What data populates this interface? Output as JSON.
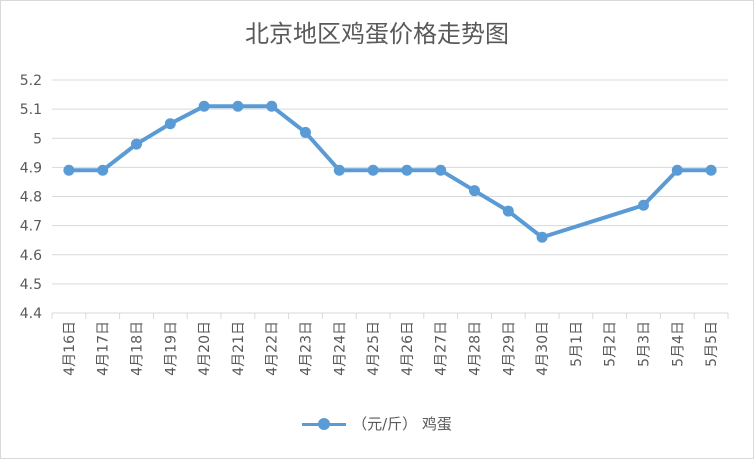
{
  "chart_data": {
    "type": "line",
    "title": "北京地区鸡蛋价格走势图",
    "categories": [
      "4月16日",
      "4月17日",
      "4月18日",
      "4月19日",
      "4月20日",
      "4月21日",
      "4月22日",
      "4月23日",
      "4月24日",
      "4月25日",
      "4月26日",
      "4月27日",
      "4月28日",
      "4月29日",
      "4月30日",
      "5月1日",
      "5月2日",
      "5月3日",
      "5月4日",
      "5月5日"
    ],
    "series": [
      {
        "name": "（元/斤） 鸡蛋",
        "color": "#5b9bd5",
        "values": [
          4.89,
          4.89,
          4.98,
          5.05,
          5.11,
          5.11,
          5.11,
          5.02,
          4.89,
          4.89,
          4.89,
          4.89,
          4.82,
          4.75,
          4.66,
          null,
          null,
          4.77,
          4.89,
          4.89
        ]
      }
    ],
    "ylim": [
      4.4,
      5.2
    ],
    "yticks": [
      4.4,
      4.5,
      4.6,
      4.7,
      4.8,
      4.9,
      5,
      5.1,
      5.2
    ],
    "ytick_labels": [
      "4.4",
      "4.5",
      "4.6",
      "4.7",
      "4.8",
      "4.9",
      "5",
      "5.1",
      "5.2"
    ],
    "grid": true,
    "legend": "bottom"
  }
}
